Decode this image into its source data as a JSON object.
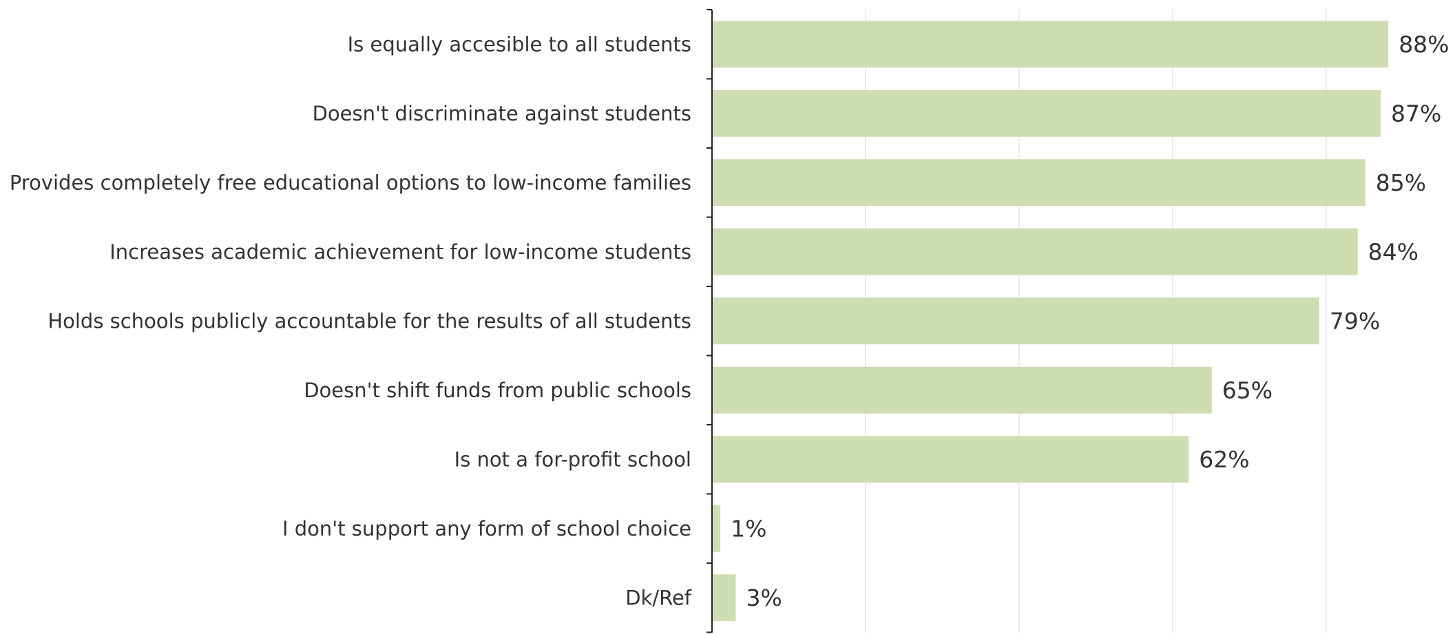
{
  "chart_data": {
    "type": "bar",
    "orientation": "horizontal",
    "categories": [
      "Is equally accesible to all students",
      "Doesn't discriminate against students",
      "Provides completely free educational options to low-income families",
      "Increases academic achievement for low-income students",
      "Holds schools publicly accountable for the results of all students",
      "Doesn't shift funds from public schools",
      "Is not a for-profit school",
      "I don't support any form of school choice",
      "Dk/Ref"
    ],
    "values": [
      88,
      87,
      85,
      84,
      79,
      65,
      62,
      1,
      3
    ],
    "value_labels": [
      "88%",
      "87%",
      "85%",
      "84%",
      "79%",
      "65%",
      "62%",
      "1%",
      "3%"
    ],
    "title": "",
    "xlabel": "",
    "ylabel": "",
    "xlim": [
      0,
      100
    ],
    "grid": true,
    "legend": "none",
    "colors": {
      "bar": "#cfddb2",
      "text": "#333333",
      "axis": "#222222",
      "grid": "#ececec"
    }
  }
}
